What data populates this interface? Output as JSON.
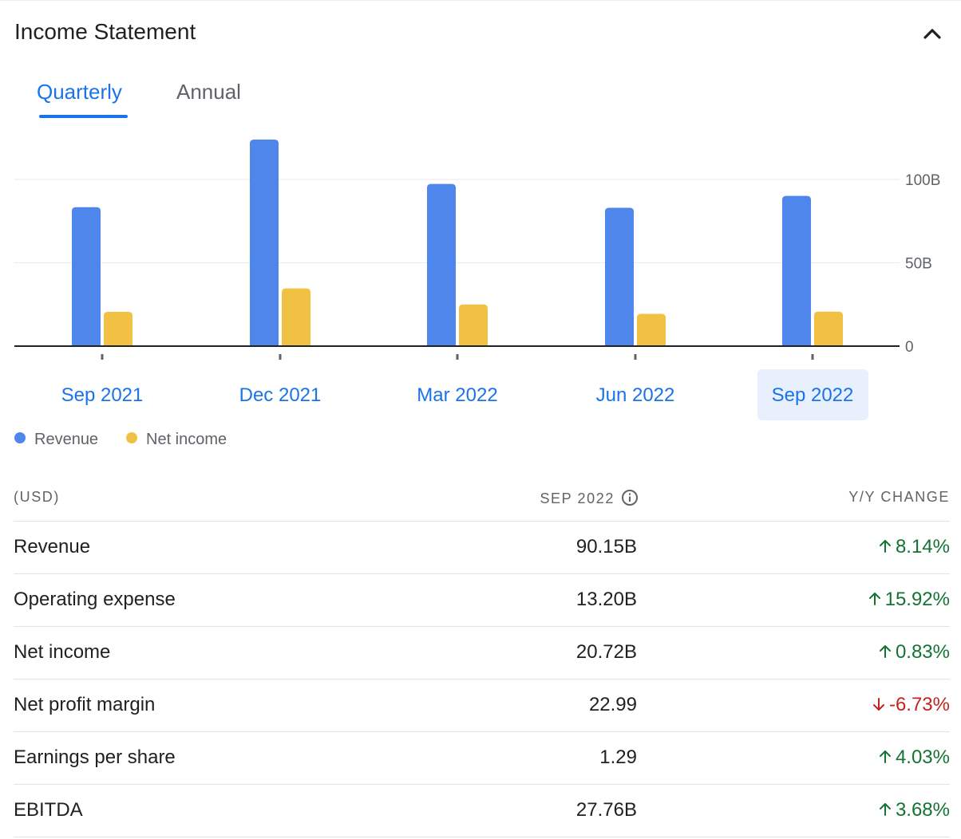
{
  "header": {
    "title": "Income Statement"
  },
  "tabs": {
    "quarterly": "Quarterly",
    "annual": "Annual",
    "selected": "Quarterly"
  },
  "chart_data": {
    "type": "bar",
    "categories": [
      "Sep 2021",
      "Dec 2021",
      "Mar 2022",
      "Jun 2022",
      "Sep 2022"
    ],
    "selected_category": "Sep 2022",
    "series": [
      {
        "name": "Revenue",
        "color": "#4f86ec",
        "values": [
          83.4,
          123.9,
          97.3,
          83.0,
          90.15
        ]
      },
      {
        "name": "Net income",
        "color": "#f1c143",
        "values": [
          20.6,
          34.6,
          25.0,
          19.4,
          20.72
        ]
      }
    ],
    "ylim": [
      0,
      100
    ],
    "yticks": [
      {
        "value": 0,
        "label": "0"
      },
      {
        "value": 50,
        "label": "50B"
      },
      {
        "value": 100,
        "label": "100B"
      }
    ],
    "grid": true,
    "legend_position": "bottom-left"
  },
  "table": {
    "unit_header": "(USD)",
    "period_header": "SEP 2022",
    "change_header": "Y/Y CHANGE",
    "rows": [
      {
        "label": "Revenue",
        "value": "90.15B",
        "change": "8.14%",
        "direction": "up"
      },
      {
        "label": "Operating expense",
        "value": "13.20B",
        "change": "15.92%",
        "direction": "up"
      },
      {
        "label": "Net income",
        "value": "20.72B",
        "change": "0.83%",
        "direction": "up"
      },
      {
        "label": "Net profit margin",
        "value": "22.99",
        "change": "-6.73%",
        "direction": "down"
      },
      {
        "label": "Earnings per share",
        "value": "1.29",
        "change": "4.03%",
        "direction": "up"
      },
      {
        "label": "EBITDA",
        "value": "27.76B",
        "change": "3.68%",
        "direction": "up"
      }
    ]
  },
  "colors": {
    "accent": "#1a73e8",
    "selected_bg": "#e8f0fe",
    "positive": "#137333",
    "negative": "#c5221f"
  }
}
